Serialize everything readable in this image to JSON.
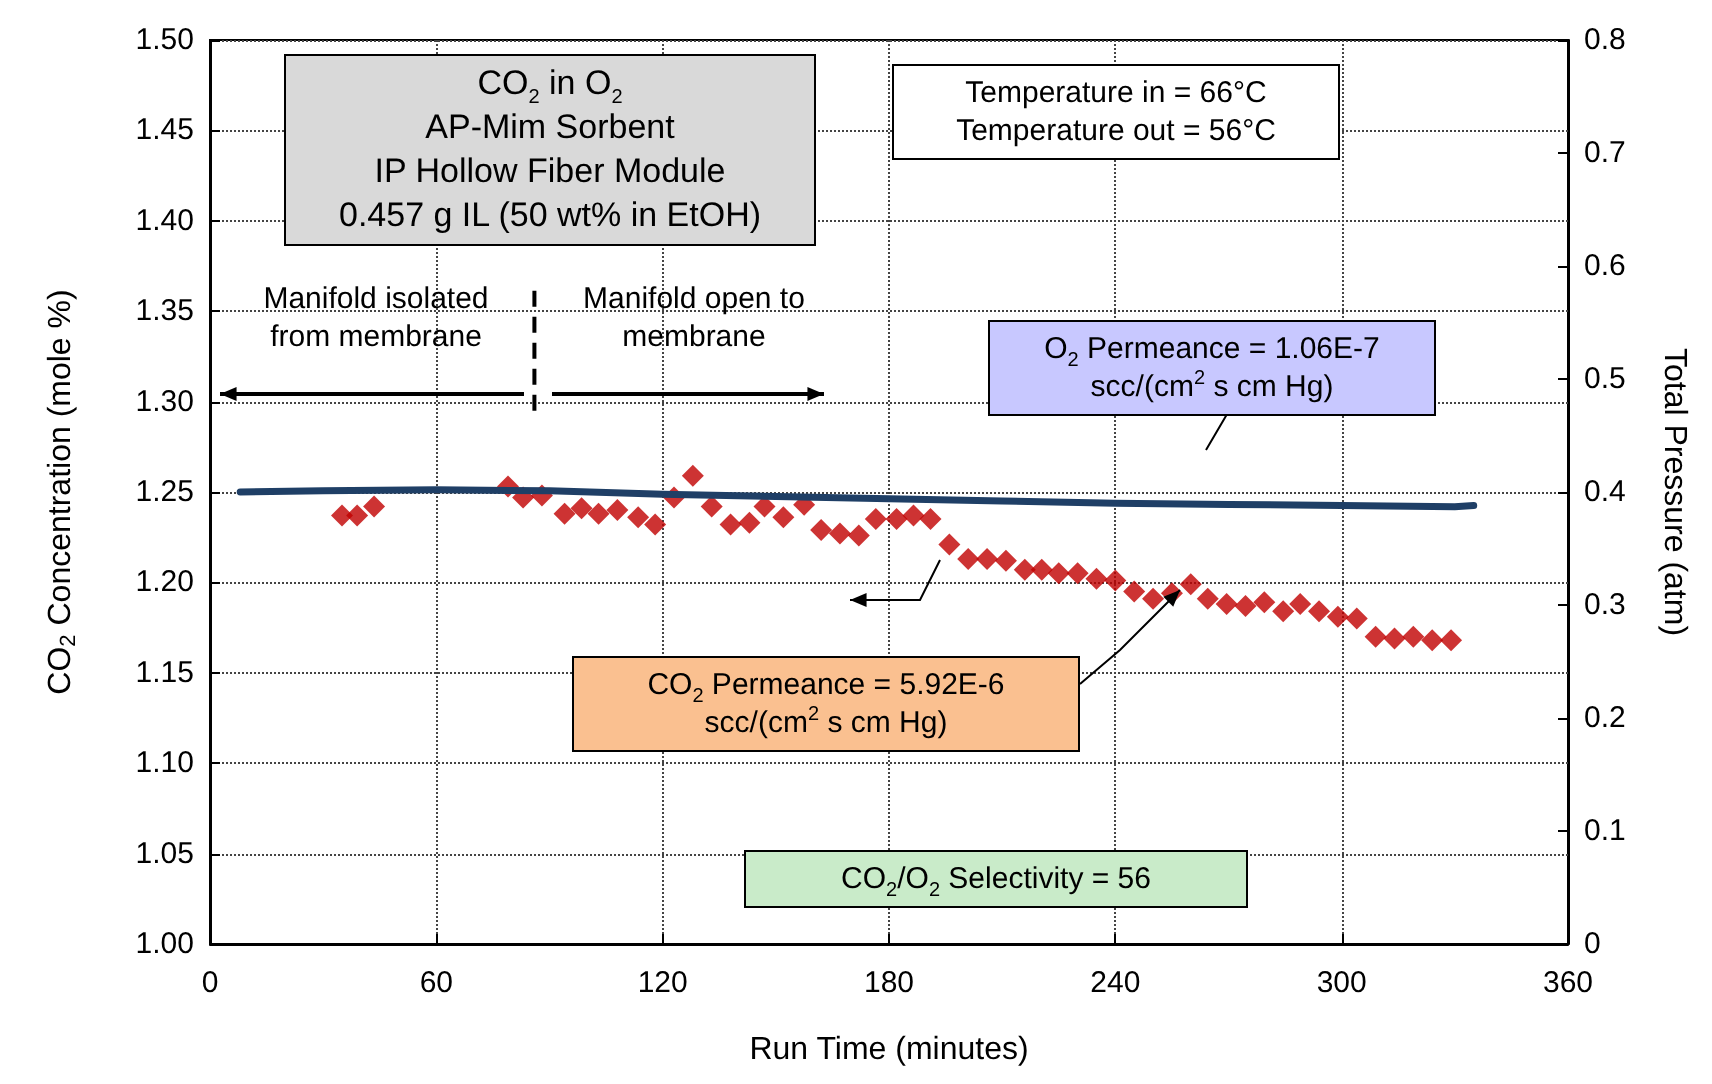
{
  "chart_data": {
    "type": "scatter",
    "xlabel": "Run Time (minutes)",
    "ylabel": "CO$_{2}$ Concentration (mole %)",
    "y2label": "Total Pressure (atm)",
    "xlim": [
      0,
      360
    ],
    "xticks": [
      0,
      60,
      120,
      180,
      240,
      300,
      360
    ],
    "ylim": [
      1.0,
      1.5
    ],
    "yticks": [
      {
        "value": 1.0,
        "label": "1.00"
      },
      {
        "value": 1.05,
        "label": "1.05"
      },
      {
        "value": 1.1,
        "label": "1.10"
      },
      {
        "value": 1.15,
        "label": "1.15"
      },
      {
        "value": 1.2,
        "label": "1.20"
      },
      {
        "value": 1.25,
        "label": "1.25"
      },
      {
        "value": 1.3,
        "label": "1.30"
      },
      {
        "value": 1.35,
        "label": "1.35"
      },
      {
        "value": 1.4,
        "label": "1.40"
      },
      {
        "value": 1.45,
        "label": "1.45"
      },
      {
        "value": 1.5,
        "label": "1.50"
      }
    ],
    "y2lim": [
      0,
      0.8
    ],
    "y2ticks": [
      0,
      0.1,
      0.2,
      0.3,
      0.4,
      0.5,
      0.6,
      0.7,
      0.8
    ],
    "grid": true,
    "series": [
      {
        "marker": "diamond",
        "color": "#c00000",
        "x": [
          35,
          39,
          43.5,
          79,
          83,
          88,
          94,
          98.5,
          103,
          108,
          113.5,
          118,
          123,
          128,
          133,
          138,
          143,
          147,
          152,
          157.5,
          162,
          167,
          172,
          176.5,
          182,
          186.5,
          191,
          196,
          201,
          206,
          211,
          216,
          220.5,
          225,
          230,
          235,
          240,
          245,
          250,
          255,
          260,
          264.5,
          269.5,
          274.5,
          279.5,
          284.5,
          289,
          294,
          299,
          304,
          309,
          314,
          319,
          324,
          329
        ],
        "values": [
          1.237,
          1.237,
          1.242,
          1.253,
          1.247,
          1.248,
          1.238,
          1.241,
          1.238,
          1.24,
          1.236,
          1.232,
          1.247,
          1.259,
          1.242,
          1.232,
          1.233,
          1.242,
          1.236,
          1.243,
          1.229,
          1.227,
          1.226,
          1.235,
          1.235,
          1.237,
          1.235,
          1.221,
          1.213,
          1.213,
          1.212,
          1.207,
          1.207,
          1.205,
          1.205,
          1.202,
          1.201,
          1.195,
          1.191,
          1.194,
          1.199,
          1.191,
          1.188,
          1.187,
          1.189,
          1.184,
          1.188,
          1.184,
          1.181,
          1.18,
          1.17,
          1.169,
          1.17,
          1.168,
          1.168
        ]
      },
      {
        "type": "line",
        "axis": "y2",
        "marker": "none",
        "color": "#1f3f66",
        "x": [
          8,
          30,
          60,
          90,
          120,
          150,
          180,
          210,
          240,
          270,
          300,
          330,
          335
        ],
        "values": [
          0.4,
          0.401,
          0.402,
          0.401,
          0.398,
          0.396,
          0.394,
          0.392,
          0.39,
          0.389,
          0.388,
          0.387,
          0.388
        ]
      }
    ],
    "ref_lines": [
      {
        "axis": "x",
        "value": 86,
        "line_style": "dashed",
        "color": "#000000"
      }
    ],
    "annotations": [
      "CO$_{2}$ in O$_{2}$\nAP-Mim Sorbent\nIP Hollow Fiber Module\n0.457 g IL (50 wt% in EtOH)",
      "Temperature in = 66°C\nTemperature out  = 56°C",
      "Manifold isolated\nfrom membrane",
      "Manifold open to\nmembrane",
      "O$_{2}$ Permeance = 1.06E-7\nscc/(cm$^{2}$ s cm Hg)",
      "CO$_{2}$ Permeance = 5.92E-6\nscc/(cm$^{2}$ s cm Hg)",
      "CO$_{2}$/O$_{2}$ Selectivity = 56"
    ]
  }
}
